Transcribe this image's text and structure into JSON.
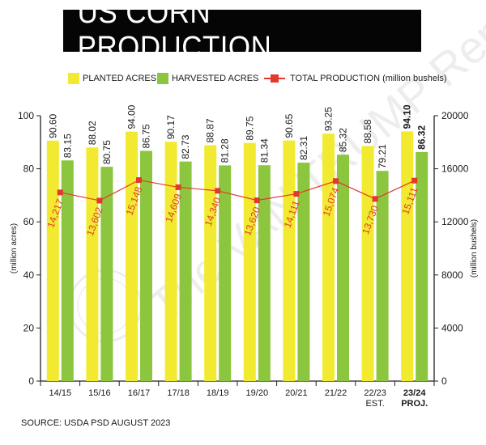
{
  "title": "US CORN PRODUCTION",
  "legend": {
    "planted": "PLANTED ACRES",
    "harvested": "HARVESTED ACRES",
    "production": "TOTAL PRODUCTION (million bushels)"
  },
  "source": "SOURCE: USDA PSD AUGUST 2023",
  "watermark": "The VAN TRUMP Report",
  "colors": {
    "planted": "#f2ea30",
    "harvested": "#8cc63f",
    "production": "#e23a2a"
  },
  "chart_data": {
    "type": "bar",
    "categories": [
      "14/15",
      "15/16",
      "16/17",
      "17/18",
      "18/19",
      "19/20",
      "20/21",
      "21/22",
      "22/23",
      "23/24"
    ],
    "category_sublabels": [
      "",
      "",
      "",
      "",
      "",
      "",
      "",
      "",
      "EST.",
      "PROJ."
    ],
    "series": [
      {
        "name": "PLANTED ACRES",
        "axis": "left",
        "values": [
          90.6,
          88.02,
          94.0,
          90.17,
          88.87,
          89.75,
          90.65,
          93.25,
          88.58,
          94.1
        ],
        "labels": [
          "90.60",
          "88.02",
          "94.00",
          "90.17",
          "88.87",
          "89.75",
          "90.65",
          "93.25",
          "88.58",
          "94.10"
        ]
      },
      {
        "name": "HARVESTED ACRES",
        "axis": "left",
        "values": [
          83.15,
          80.75,
          86.75,
          82.73,
          81.28,
          81.34,
          82.31,
          85.32,
          79.21,
          86.32
        ],
        "labels": [
          "83.15",
          "80.75",
          "86.75",
          "82.73",
          "81.28",
          "81.34",
          "82.31",
          "85.32",
          "79.21",
          "86.32"
        ]
      },
      {
        "name": "TOTAL PRODUCTION (million bushels)",
        "axis": "right",
        "type": "line",
        "values": [
          14217,
          13602,
          15148,
          14609,
          14340,
          13620,
          14111,
          15074,
          13730,
          15111
        ],
        "labels": [
          "14,217",
          "13,602",
          "15,148",
          "14,609",
          "14,340",
          "13,620",
          "14,111",
          "15,074",
          "13,730",
          "15,111"
        ]
      }
    ],
    "y_left": {
      "label": "(million acres)",
      "ylim": [
        0,
        100
      ],
      "ticks": [
        0,
        20,
        40,
        60,
        80,
        100
      ]
    },
    "y_right": {
      "label": "(million bushels)",
      "ylim": [
        0,
        20000
      ],
      "ticks": [
        0,
        4000,
        8000,
        12000,
        16000,
        20000
      ]
    },
    "bold_last_category": true,
    "legend_position": "top",
    "grid": false
  }
}
